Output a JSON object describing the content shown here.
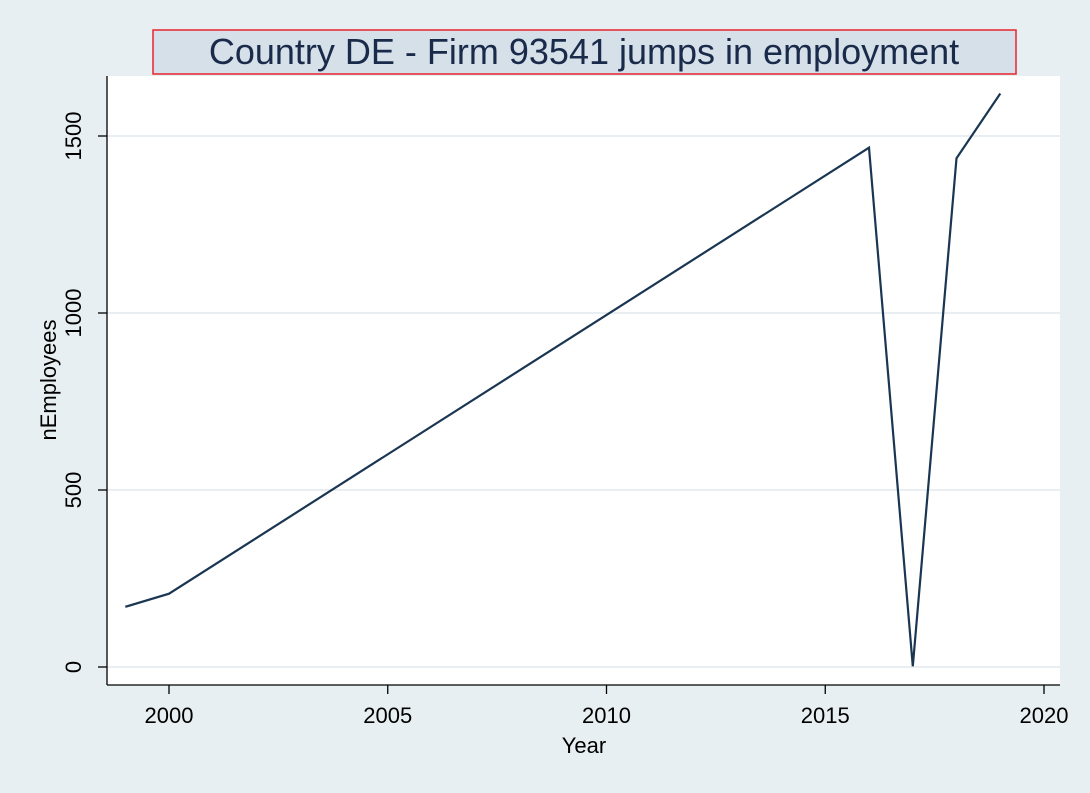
{
  "chart_data": {
    "type": "line",
    "title": "Country DE - Firm 93541  jumps in employment",
    "xlabel": "Year",
    "ylabel": "nEmployees",
    "xlim": [
      1999,
      2020
    ],
    "ylim": [
      0,
      1650
    ],
    "x_ticks": [
      2000,
      2005,
      2010,
      2015,
      2020
    ],
    "y_ticks": [
      0,
      500,
      1000,
      1500
    ],
    "grid": true,
    "series": [
      {
        "x": [
          1999,
          2000,
          2016,
          2017,
          2018,
          2019
        ],
        "values": [
          170,
          207,
          1467,
          2,
          1437,
          1620
        ]
      }
    ],
    "colors": {
      "background": "#e8eff2",
      "plot_area": "#ffffff",
      "gridline": "#e1e9ed",
      "line": "#1a3652",
      "title_box_fill": "#d5e0e8",
      "title_box_border": "#e8242d"
    }
  }
}
